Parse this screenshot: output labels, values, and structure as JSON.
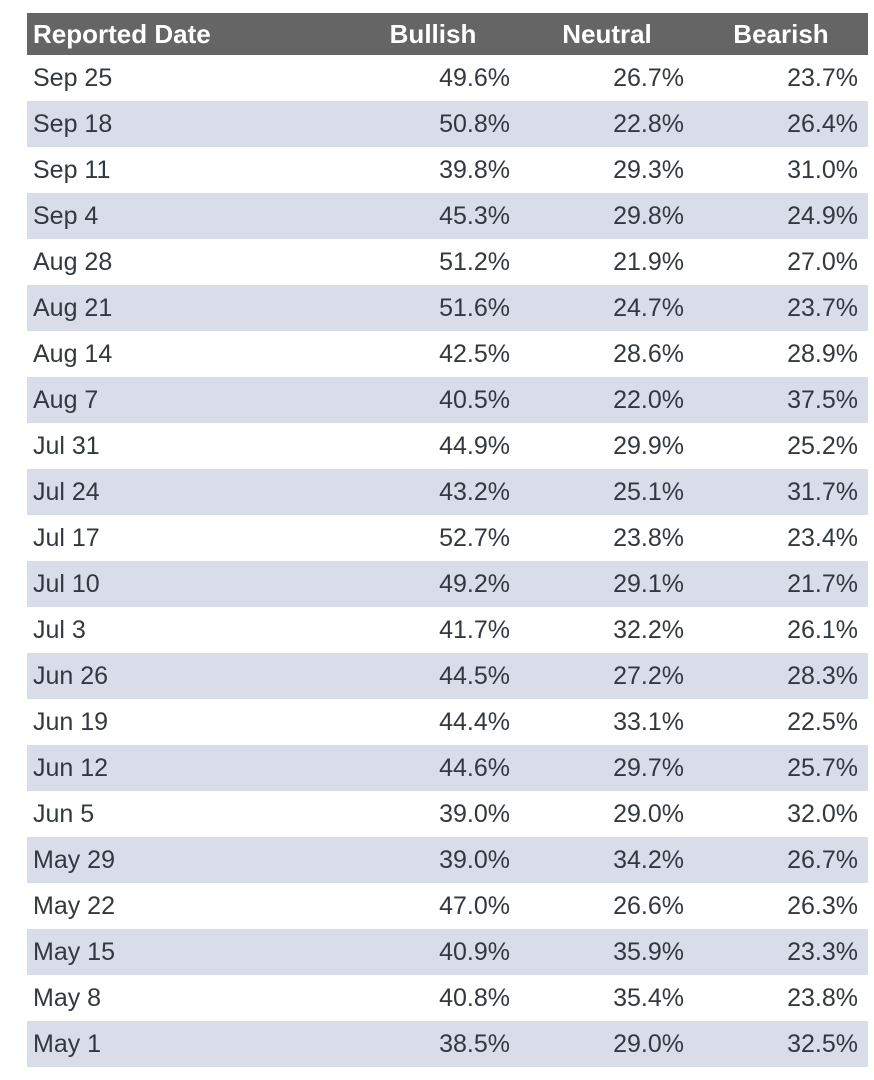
{
  "table": {
    "columns": [
      "Reported Date",
      "Bullish",
      "Neutral",
      "Bearish"
    ],
    "rows": [
      {
        "date": "Sep 25",
        "bullish": "49.6%",
        "neutral": "26.7%",
        "bearish": "23.7%"
      },
      {
        "date": "Sep 18",
        "bullish": "50.8%",
        "neutral": "22.8%",
        "bearish": "26.4%"
      },
      {
        "date": "Sep 11",
        "bullish": "39.8%",
        "neutral": "29.3%",
        "bearish": "31.0%"
      },
      {
        "date": "Sep 4",
        "bullish": "45.3%",
        "neutral": "29.8%",
        "bearish": "24.9%"
      },
      {
        "date": "Aug 28",
        "bullish": "51.2%",
        "neutral": "21.9%",
        "bearish": "27.0%"
      },
      {
        "date": "Aug 21",
        "bullish": "51.6%",
        "neutral": "24.7%",
        "bearish": "23.7%"
      },
      {
        "date": "Aug 14",
        "bullish": "42.5%",
        "neutral": "28.6%",
        "bearish": "28.9%"
      },
      {
        "date": "Aug 7",
        "bullish": "40.5%",
        "neutral": "22.0%",
        "bearish": "37.5%"
      },
      {
        "date": "Jul 31",
        "bullish": "44.9%",
        "neutral": "29.9%",
        "bearish": "25.2%"
      },
      {
        "date": "Jul 24",
        "bullish": "43.2%",
        "neutral": "25.1%",
        "bearish": "31.7%"
      },
      {
        "date": "Jul 17",
        "bullish": "52.7%",
        "neutral": "23.8%",
        "bearish": "23.4%"
      },
      {
        "date": "Jul 10",
        "bullish": "49.2%",
        "neutral": "29.1%",
        "bearish": "21.7%"
      },
      {
        "date": "Jul 3",
        "bullish": "41.7%",
        "neutral": "32.2%",
        "bearish": "26.1%"
      },
      {
        "date": "Jun 26",
        "bullish": "44.5%",
        "neutral": "27.2%",
        "bearish": "28.3%"
      },
      {
        "date": "Jun 19",
        "bullish": "44.4%",
        "neutral": "33.1%",
        "bearish": "22.5%"
      },
      {
        "date": "Jun 12",
        "bullish": "44.6%",
        "neutral": "29.7%",
        "bearish": "25.7%"
      },
      {
        "date": "Jun 5",
        "bullish": "39.0%",
        "neutral": "29.0%",
        "bearish": "32.0%"
      },
      {
        "date": "May 29",
        "bullish": "39.0%",
        "neutral": "34.2%",
        "bearish": "26.7%"
      },
      {
        "date": "May 22",
        "bullish": "47.0%",
        "neutral": "26.6%",
        "bearish": "26.3%"
      },
      {
        "date": "May 15",
        "bullish": "40.9%",
        "neutral": "35.9%",
        "bearish": "23.3%"
      },
      {
        "date": "May 8",
        "bullish": "40.8%",
        "neutral": "35.4%",
        "bearish": "23.8%"
      },
      {
        "date": "May 1",
        "bullish": "38.5%",
        "neutral": "29.0%",
        "bearish": "32.5%"
      }
    ]
  },
  "chart_data": {
    "type": "table",
    "title": "",
    "columns": [
      "Reported Date",
      "Bullish",
      "Neutral",
      "Bearish"
    ],
    "units": "percent",
    "rows": [
      [
        "Sep 25",
        49.6,
        26.7,
        23.7
      ],
      [
        "Sep 18",
        50.8,
        22.8,
        26.4
      ],
      [
        "Sep 11",
        39.8,
        29.3,
        31.0
      ],
      [
        "Sep 4",
        45.3,
        29.8,
        24.9
      ],
      [
        "Aug 28",
        51.2,
        21.9,
        27.0
      ],
      [
        "Aug 21",
        51.6,
        24.7,
        23.7
      ],
      [
        "Aug 14",
        42.5,
        28.6,
        28.9
      ],
      [
        "Aug 7",
        40.5,
        22.0,
        37.5
      ],
      [
        "Jul 31",
        44.9,
        29.9,
        25.2
      ],
      [
        "Jul 24",
        43.2,
        25.1,
        31.7
      ],
      [
        "Jul 17",
        52.7,
        23.8,
        23.4
      ],
      [
        "Jul 10",
        49.2,
        29.1,
        21.7
      ],
      [
        "Jul 3",
        41.7,
        32.2,
        26.1
      ],
      [
        "Jun 26",
        44.5,
        27.2,
        28.3
      ],
      [
        "Jun 19",
        44.4,
        33.1,
        22.5
      ],
      [
        "Jun 12",
        44.6,
        29.7,
        25.7
      ],
      [
        "Jun 5",
        39.0,
        29.0,
        32.0
      ],
      [
        "May 29",
        39.0,
        34.2,
        26.7
      ],
      [
        "May 22",
        47.0,
        26.6,
        26.3
      ],
      [
        "May 15",
        40.9,
        35.9,
        23.3
      ],
      [
        "May 8",
        40.8,
        35.4,
        23.8
      ],
      [
        "May 1",
        38.5,
        29.0,
        32.5
      ]
    ],
    "layout_hints": {
      "striped": true,
      "stripe_pattern": "even data rows shaded",
      "header_alignment": "date left, numeric centered",
      "value_alignment": "date left, numeric right"
    }
  },
  "colors": {
    "header_bg": "#656565",
    "header_text": "#ffffff",
    "row_bg": "#ffffff",
    "row_alt_bg": "#d8dde9",
    "body_text": "#333840"
  }
}
